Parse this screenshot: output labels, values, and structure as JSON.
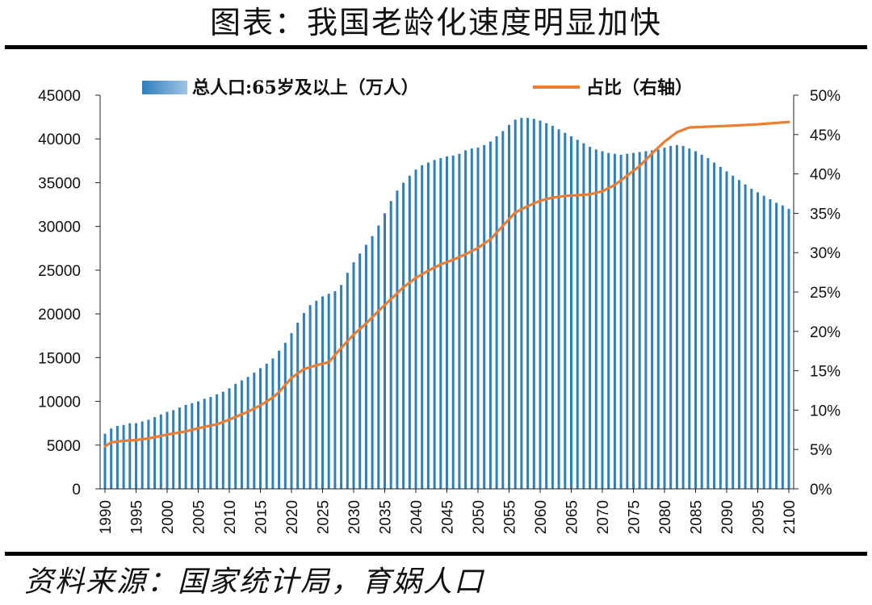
{
  "title": "图表：我国老龄化速度明显加快",
  "source": "资料来源：国家统计局，育娲人口",
  "colors": {
    "bar": "#2e7fbd",
    "line": "#ed7d31",
    "rule": "#000000"
  },
  "chart_data": {
    "type": "bar+line",
    "x": [
      1990,
      1991,
      1992,
      1993,
      1994,
      1995,
      1996,
      1997,
      1998,
      1999,
      2000,
      2001,
      2002,
      2003,
      2004,
      2005,
      2006,
      2007,
      2008,
      2009,
      2010,
      2011,
      2012,
      2013,
      2014,
      2015,
      2016,
      2017,
      2018,
      2019,
      2020,
      2021,
      2022,
      2023,
      2024,
      2025,
      2026,
      2027,
      2028,
      2029,
      2030,
      2031,
      2032,
      2033,
      2034,
      2035,
      2036,
      2037,
      2038,
      2039,
      2040,
      2041,
      2042,
      2043,
      2044,
      2045,
      2046,
      2047,
      2048,
      2049,
      2050,
      2051,
      2052,
      2053,
      2054,
      2055,
      2056,
      2057,
      2058,
      2059,
      2060,
      2061,
      2062,
      2063,
      2064,
      2065,
      2066,
      2067,
      2068,
      2069,
      2070,
      2071,
      2072,
      2073,
      2074,
      2075,
      2076,
      2077,
      2078,
      2079,
      2080,
      2081,
      2082,
      2083,
      2084,
      2085,
      2086,
      2087,
      2088,
      2089,
      2090,
      2091,
      2092,
      2093,
      2094,
      2095,
      2096,
      2097,
      2098,
      2099,
      2100
    ],
    "xticks": [
      "1990",
      "1995",
      "2000",
      "2005",
      "2010",
      "2015",
      "2020",
      "2025",
      "2030",
      "2035",
      "2040",
      "2045",
      "2050",
      "2055",
      "2060",
      "2065",
      "2070",
      "2075",
      "2080",
      "2085",
      "2090",
      "2095",
      "2100"
    ],
    "series": [
      {
        "name": "总人口:65岁及以上（万人）",
        "type": "bar",
        "axis": "left",
        "values": [
          6300,
          6900,
          7200,
          7300,
          7500,
          7500,
          7700,
          7900,
          8200,
          8500,
          8800,
          9000,
          9300,
          9600,
          9800,
          10000,
          10300,
          10500,
          10800,
          11100,
          11500,
          12000,
          12400,
          12800,
          13300,
          13800,
          14300,
          14900,
          15800,
          16700,
          17800,
          19000,
          20100,
          21000,
          21500,
          22000,
          22300,
          22600,
          23300,
          24700,
          25900,
          26900,
          27900,
          28900,
          30100,
          31500,
          32900,
          34100,
          35000,
          35800,
          36500,
          37000,
          37300,
          37600,
          37800,
          38000,
          38100,
          38300,
          38700,
          38900,
          39000,
          39300,
          39700,
          40300,
          40900,
          41600,
          42200,
          42400,
          42400,
          42300,
          42100,
          41800,
          41500,
          41100,
          40700,
          40300,
          39900,
          39500,
          39100,
          38800,
          38600,
          38400,
          38300,
          38200,
          38300,
          38400,
          38500,
          38600,
          38700,
          38800,
          39000,
          39200,
          39300,
          39200,
          38900,
          38600,
          38200,
          37800,
          37300,
          36800,
          36300,
          35800,
          35300,
          34800,
          34300,
          33900,
          33500,
          33100,
          32700,
          32400,
          32000
        ]
      },
      {
        "name": "占比（右轴）",
        "type": "line",
        "axis": "right",
        "points": [
          [
            1990,
            5.4
          ],
          [
            1991,
            5.9
          ],
          [
            1993,
            6.1
          ],
          [
            1995,
            6.2
          ],
          [
            1997,
            6.4
          ],
          [
            2000,
            6.9
          ],
          [
            2003,
            7.3
          ],
          [
            2005,
            7.7
          ],
          [
            2008,
            8.2
          ],
          [
            2010,
            8.8
          ],
          [
            2013,
            9.8
          ],
          [
            2015,
            10.6
          ],
          [
            2017,
            11.6
          ],
          [
            2018,
            12.3
          ],
          [
            2020,
            14.1
          ],
          [
            2022,
            15.2
          ],
          [
            2024,
            15.7
          ],
          [
            2026,
            16.1
          ],
          [
            2028,
            17.9
          ],
          [
            2030,
            19.6
          ],
          [
            2032,
            21.0
          ],
          [
            2034,
            22.6
          ],
          [
            2036,
            24.1
          ],
          [
            2038,
            25.6
          ],
          [
            2040,
            26.8
          ],
          [
            2042,
            27.7
          ],
          [
            2044,
            28.5
          ],
          [
            2046,
            29.1
          ],
          [
            2048,
            29.8
          ],
          [
            2050,
            30.6
          ],
          [
            2052,
            31.7
          ],
          [
            2054,
            33.4
          ],
          [
            2056,
            35.1
          ],
          [
            2058,
            35.9
          ],
          [
            2060,
            36.6
          ],
          [
            2062,
            37.0
          ],
          [
            2064,
            37.2
          ],
          [
            2066,
            37.3
          ],
          [
            2068,
            37.4
          ],
          [
            2070,
            37.8
          ],
          [
            2072,
            38.6
          ],
          [
            2074,
            39.8
          ],
          [
            2076,
            41.0
          ],
          [
            2078,
            42.6
          ],
          [
            2080,
            44.1
          ],
          [
            2082,
            45.3
          ],
          [
            2084,
            45.9
          ],
          [
            2087,
            46.0
          ],
          [
            2090,
            46.1
          ],
          [
            2095,
            46.3
          ],
          [
            2100,
            46.6
          ]
        ]
      }
    ],
    "left_axis": {
      "ylim": [
        0,
        45000
      ],
      "ticks": [
        "0",
        "5000",
        "10000",
        "15000",
        "20000",
        "25000",
        "30000",
        "35000",
        "40000",
        "45000"
      ]
    },
    "right_axis": {
      "ylim": [
        0,
        50
      ],
      "unit": "%",
      "ticks": [
        "0%",
        "5%",
        "10%",
        "15%",
        "20%",
        "25%",
        "30%",
        "35%",
        "40%",
        "45%",
        "50%"
      ]
    },
    "grid": false,
    "legend": "top"
  }
}
